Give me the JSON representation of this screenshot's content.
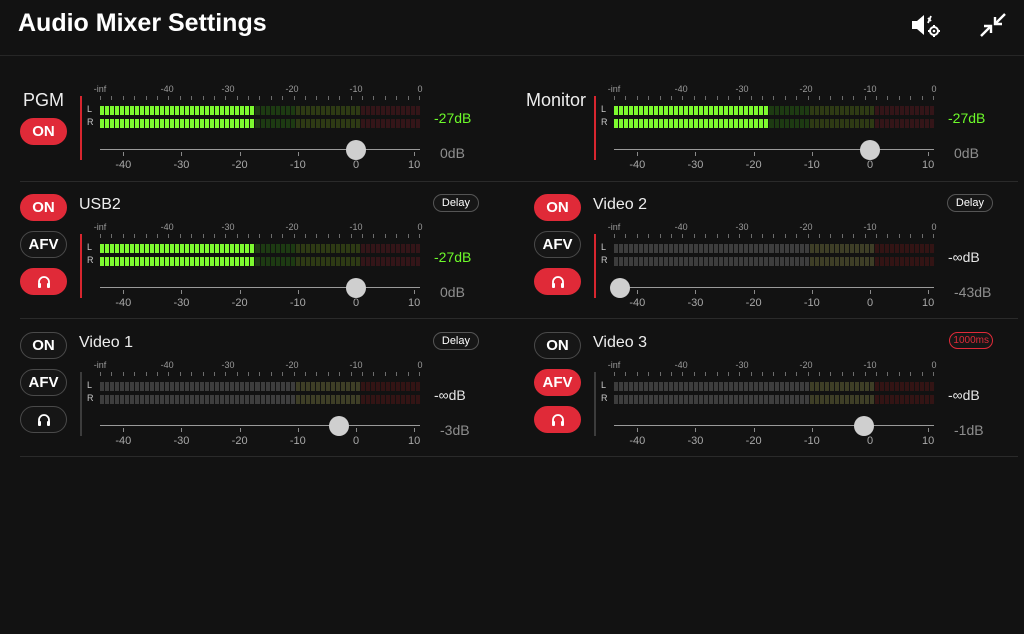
{
  "header": {
    "title": "Audio Mixer Settings",
    "icons": {
      "settings": "speaker-gear-icon",
      "minimize": "collapse-arrows-icon"
    }
  },
  "colors": {
    "accent": "#e02a38",
    "meter_green": "#7dfa2f",
    "level_green": "#6dfa2a"
  },
  "meter": {
    "top_scale": [
      "-inf",
      "-40",
      "-30",
      "-20",
      "-10",
      "0"
    ],
    "left_label": "L",
    "right_label": "R",
    "bottom_scale": [
      "-40",
      "-30",
      "-20",
      "-10",
      "0",
      "10"
    ]
  },
  "channels": [
    {
      "id": "pgm",
      "name": "PGM",
      "on_label": "ON",
      "on": true,
      "level": "-27dB",
      "level_active": true,
      "gain": "0dB",
      "fader_db": 0,
      "lit_fraction": 0.48
    },
    {
      "id": "monitor",
      "name": "Monitor",
      "level": "-27dB",
      "level_active": true,
      "gain": "0dB",
      "fader_db": 0,
      "lit_fraction": 0.48
    },
    {
      "id": "usb2",
      "name": "USB2",
      "on_label": "ON",
      "on": true,
      "afv_label": "AFV",
      "afv": false,
      "headphone": true,
      "delay_label": "Delay",
      "delay_highlight": false,
      "level": "-27dB",
      "level_active": true,
      "gain": "0dB",
      "fader_db": 0,
      "lit_fraction": 0.48
    },
    {
      "id": "video2",
      "name": "Video 2",
      "on_label": "ON",
      "on": true,
      "afv_label": "AFV",
      "afv": false,
      "headphone": true,
      "delay_label": "Delay",
      "delay_highlight": false,
      "level": "-∞dB",
      "level_active": false,
      "gain": "-43dB",
      "fader_db": -43,
      "lit_fraction": 0
    },
    {
      "id": "video1",
      "name": "Video 1",
      "on_label": "ON",
      "on": false,
      "afv_label": "AFV",
      "afv": false,
      "headphone": false,
      "delay_label": "Delay",
      "delay_highlight": false,
      "level": "-∞dB",
      "level_active": false,
      "gain": "-3dB",
      "fader_db": -3,
      "lit_fraction": 0
    },
    {
      "id": "video3",
      "name": "Video 3",
      "on_label": "ON",
      "on": false,
      "afv_label": "AFV",
      "afv": true,
      "headphone": true,
      "delay_label": "1000ms",
      "delay_highlight": true,
      "level": "-∞dB",
      "level_active": false,
      "gain": "-1dB",
      "fader_db": -1,
      "lit_fraction": 0
    }
  ]
}
